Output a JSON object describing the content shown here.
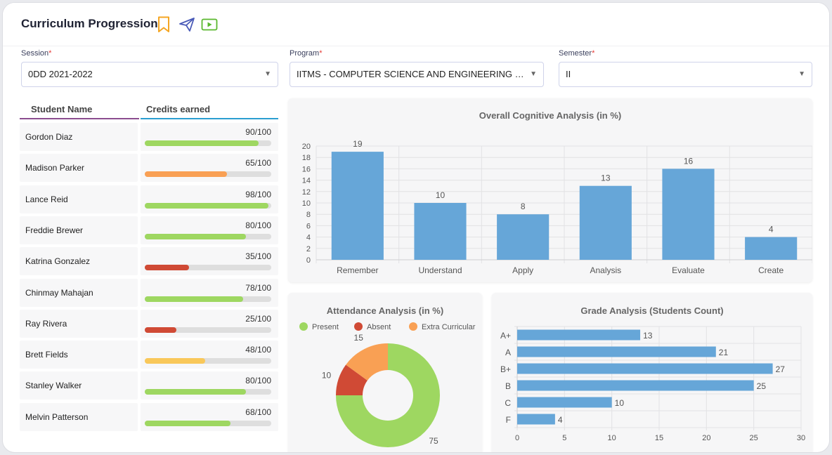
{
  "header": {
    "title": "Curriculum Progression"
  },
  "filters": {
    "session": {
      "label": "Session",
      "value": "0DD 2021-2022"
    },
    "program": {
      "label": "Program",
      "value": "IITMS - COMPUTER SCIENCE AND ENGINEERING - B.E.(B.E. Degree)"
    },
    "semester": {
      "label": "Semester",
      "value": "II"
    },
    "required_mark": "*",
    "arrow": "▼"
  },
  "table": {
    "col_name": "Student Name",
    "col_credits": "Credits earned",
    "rows": [
      {
        "name": "Gordon Diaz",
        "score": "90/100",
        "pct": 0.9,
        "color": "#9ed761"
      },
      {
        "name": "Madison Parker",
        "score": "65/100",
        "pct": 0.65,
        "color": "#f9a054"
      },
      {
        "name": "Lance Reid",
        "score": "98/100",
        "pct": 0.98,
        "color": "#9ed761"
      },
      {
        "name": "Freddie Brewer",
        "score": "80/100",
        "pct": 0.8,
        "color": "#9ed761"
      },
      {
        "name": "Katrina Gonzalez",
        "score": "35/100",
        "pct": 0.35,
        "color": "#d04a35"
      },
      {
        "name": "Chinmay Mahajan",
        "score": "78/100",
        "pct": 0.78,
        "color": "#9ed761"
      },
      {
        "name": "Ray Rivera",
        "score": "25/100",
        "pct": 0.25,
        "color": "#d04a35"
      },
      {
        "name": "Brett Fields",
        "score": "48/100",
        "pct": 0.48,
        "color": "#f9c85a"
      },
      {
        "name": "Stanley Walker",
        "score": "80/100",
        "pct": 0.8,
        "color": "#9ed761"
      },
      {
        "name": "Melvin Patterson",
        "score": "68/100",
        "pct": 0.68,
        "color": "#9ed761"
      }
    ]
  },
  "colors": {
    "bar": "#66a6d8",
    "present": "#9ed761",
    "absent": "#d04a35",
    "extra": "#f9a054",
    "accent_name": "#8b4d8f",
    "accent_credits": "#2b9ed0"
  },
  "chart_data": [
    {
      "type": "bar",
      "title": "Overall Cognitive Analysis (in %)",
      "categories": [
        "Remember",
        "Understand",
        "Apply",
        "Analysis",
        "Evaluate",
        "Create"
      ],
      "values": [
        19,
        10,
        8,
        13,
        16,
        4
      ],
      "ylim": [
        0,
        20
      ],
      "yticks": [
        0,
        2,
        4,
        6,
        8,
        10,
        12,
        14,
        16,
        18,
        20
      ],
      "grid": true
    },
    {
      "type": "pie",
      "title": "Attendance Analysis (in %)",
      "categories": [
        "Present",
        "Absent",
        "Extra Curricular"
      ],
      "values": [
        75,
        10,
        15
      ],
      "legend": "top"
    },
    {
      "type": "bar",
      "orientation": "horizontal",
      "title": "Grade Analysis (Students Count)",
      "categories": [
        "A+",
        "A",
        "B+",
        "B",
        "C",
        "F"
      ],
      "values": [
        13,
        21,
        27,
        25,
        10,
        4
      ],
      "xlim": [
        0,
        30
      ],
      "xticks": [
        0,
        5,
        10,
        15,
        20,
        25,
        30
      ],
      "grid": true
    }
  ]
}
